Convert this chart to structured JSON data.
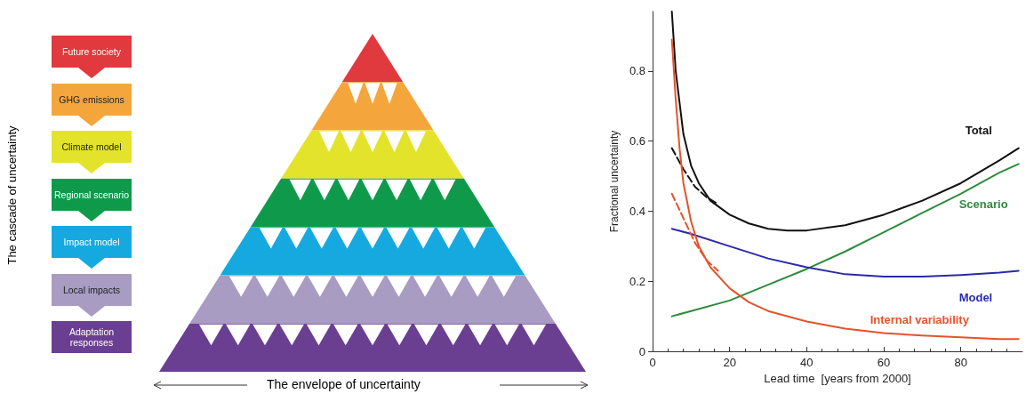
{
  "chart_data": [
    {
      "type": "other",
      "ylabel": "The cascade of uncertainty",
      "xlabel": "The envelope of uncertainty",
      "categories": [
        "Future society",
        "GHG emissions",
        "Climate model",
        "Regional scenario",
        "Impact model",
        "Local impacts",
        "Adaptation responses"
      ],
      "colors": [
        "#e0393e",
        "#f4a63c",
        "#e4e32c",
        "#0f9a4b",
        "#16a9df",
        "#a89cc3",
        "#6a3f92"
      ]
    },
    {
      "type": "line",
      "xlabel": "Lead time  [years from 2000]",
      "ylabel": "Fractional uncertainty",
      "xlim": [
        0,
        96
      ],
      "xticks": [
        0,
        20,
        40,
        60,
        80
      ],
      "ylim": [
        0,
        0.97
      ],
      "yticks": [
        0,
        0.2,
        0.4,
        0.6,
        0.8
      ],
      "grid": false,
      "legend": false,
      "marker": "none",
      "series": [
        {
          "name": "Total",
          "color": "#111111",
          "x": [
            5,
            6,
            8,
            10,
            12,
            15,
            20,
            25,
            30,
            35,
            40,
            50,
            60,
            70,
            80,
            90,
            95
          ],
          "values": [
            0.97,
            0.8,
            0.62,
            0.53,
            0.48,
            0.43,
            0.39,
            0.365,
            0.35,
            0.345,
            0.345,
            0.36,
            0.39,
            0.43,
            0.48,
            0.545,
            0.58
          ]
        },
        {
          "color": "#111111",
          "line_style": "dashed",
          "x": [
            5,
            8,
            11,
            14,
            17
          ],
          "values": [
            0.58,
            0.52,
            0.47,
            0.44,
            0.42
          ]
        },
        {
          "name": "Scenario",
          "color": "#2e8b3e",
          "x": [
            5,
            10,
            20,
            30,
            40,
            50,
            60,
            70,
            80,
            90,
            95
          ],
          "values": [
            0.1,
            0.115,
            0.145,
            0.19,
            0.235,
            0.285,
            0.34,
            0.395,
            0.45,
            0.51,
            0.535
          ]
        },
        {
          "name": "Model",
          "color": "#2a2aa8",
          "x": [
            5,
            10,
            20,
            30,
            40,
            50,
            60,
            70,
            80,
            90,
            95
          ],
          "values": [
            0.35,
            0.335,
            0.3,
            0.265,
            0.24,
            0.22,
            0.213,
            0.213,
            0.218,
            0.225,
            0.23
          ]
        },
        {
          "name": "Internal variability",
          "color": "#e4532a",
          "x": [
            5,
            6,
            7,
            8,
            10,
            12,
            15,
            20,
            25,
            30,
            40,
            50,
            60,
            70,
            80,
            90,
            95
          ],
          "values": [
            0.89,
            0.72,
            0.58,
            0.48,
            0.37,
            0.3,
            0.24,
            0.18,
            0.14,
            0.115,
            0.085,
            0.065,
            0.052,
            0.045,
            0.04,
            0.035,
            0.035
          ]
        },
        {
          "color": "#e4532a",
          "line_style": "dashed",
          "x": [
            5,
            8,
            11,
            14,
            17
          ],
          "values": [
            0.45,
            0.38,
            0.31,
            0.26,
            0.23
          ]
        }
      ]
    }
  ]
}
